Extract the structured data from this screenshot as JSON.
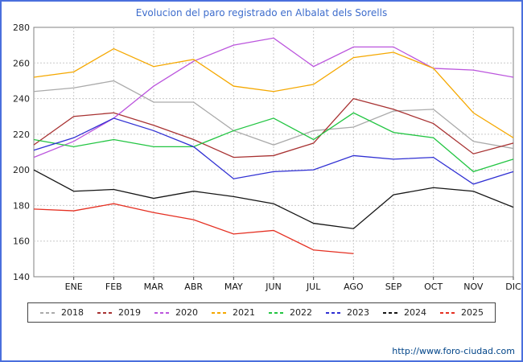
{
  "page": {
    "footer_link": "http://www.foro-ciudad.com"
  },
  "chart_data": {
    "type": "line",
    "title": "Evolucion del paro registrado en Albalat dels Sorells",
    "xlabel": "",
    "ylabel": "",
    "ylim": [
      140,
      280
    ],
    "y_ticks": [
      140,
      160,
      180,
      200,
      220,
      240,
      260,
      280
    ],
    "grid": true,
    "legend_position": "bottom",
    "x_labels": [
      "ENE",
      "FEB",
      "MAR",
      "ABR",
      "MAY",
      "JUN",
      "JUL",
      "AGO",
      "SEP",
      "OCT",
      "NOV",
      "DIC"
    ],
    "points_note": "first value of each series sits on the left axis before ENE",
    "series": [
      {
        "name": "2018",
        "color": "#aaaaaa",
        "values": [
          244,
          246,
          250,
          238,
          238,
          222,
          214,
          222,
          224,
          233,
          234,
          216,
          212
        ]
      },
      {
        "name": "2019",
        "color": "#a83232",
        "values": [
          214,
          230,
          232,
          225,
          217,
          207,
          208,
          215,
          240,
          234,
          226,
          209,
          215
        ]
      },
      {
        "name": "2020",
        "color": "#bb55dd",
        "values": [
          207,
          216,
          229,
          247,
          261,
          270,
          274,
          258,
          269,
          269,
          257,
          256,
          252
        ]
      },
      {
        "name": "2021",
        "color": "#f5a800",
        "values": [
          252,
          255,
          268,
          258,
          262,
          247,
          244,
          248,
          263,
          266,
          257,
          232,
          218
        ]
      },
      {
        "name": "2022",
        "color": "#22c542",
        "values": [
          217,
          213,
          217,
          213,
          213,
          222,
          229,
          217,
          232,
          221,
          218,
          199,
          206
        ]
      },
      {
        "name": "2023",
        "color": "#2f2fd3",
        "values": [
          211,
          218,
          229,
          222,
          213,
          195,
          199,
          200,
          208,
          206,
          207,
          192,
          199
        ]
      },
      {
        "name": "2024",
        "color": "#151515",
        "values": [
          200,
          188,
          189,
          184,
          188,
          185,
          181,
          170,
          167,
          186,
          190,
          188,
          179
        ]
      },
      {
        "name": "2025",
        "color": "#e53022",
        "values": [
          178,
          177,
          181,
          176,
          172,
          164,
          166,
          155,
          153
        ]
      }
    ]
  }
}
